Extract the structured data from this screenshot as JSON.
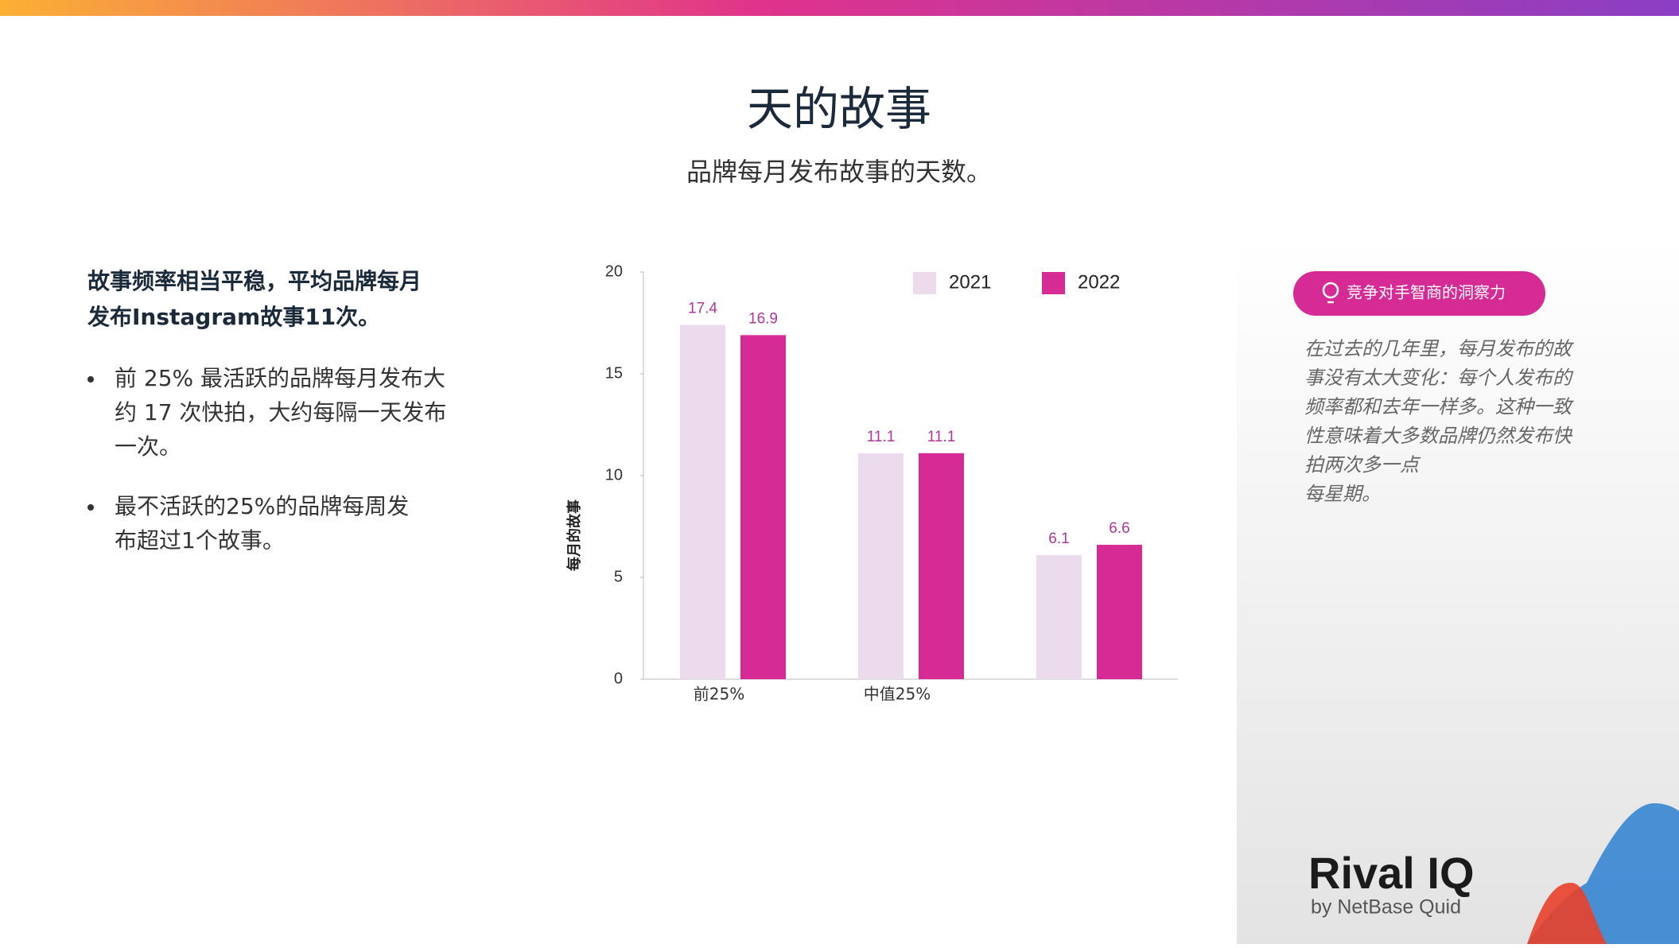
{
  "header": {
    "title": "天的故事",
    "subtitle": "品牌每月发布故事的天数。"
  },
  "summary": {
    "heading": [
      "故事频率相当平稳，平均品牌每月",
      "发布Instagram故事11次。"
    ],
    "bullets": [
      [
        "前 25% 最活跃的品牌每月发布大",
        "约 17 次快拍，大约每隔一天发布",
        "一次。"
      ],
      [
        "最不活跃的25%的品牌每周发",
        "布超过1个故事。"
      ]
    ]
  },
  "chart_data": {
    "type": "bar",
    "y_label": "每月的故事",
    "categories": [
      "前25%",
      "中值25%",
      null
    ],
    "series": [
      {
        "name": "2021",
        "color": "#ecdbec",
        "values": [
          17.4,
          11.1,
          6.1
        ]
      },
      {
        "name": "2022",
        "color": "#d62b94",
        "values": [
          16.9,
          11.1,
          6.6
        ]
      }
    ],
    "ylim": [
      0,
      20
    ],
    "yticks": [
      0,
      5,
      10,
      15,
      20
    ],
    "grid": false,
    "legend": "top-right"
  },
  "insight": {
    "badge": "竞争对手智商的洞察力",
    "lines": [
      "在过去的几年里，每月发布的故",
      "事没有太大变化：每个人发布的",
      "频率都和去年一样多。这种一致",
      "性意味着大多数品牌仍然发布快",
      "拍两次多一点",
      "每星期。"
    ]
  },
  "logo": {
    "name": "Rival IQ",
    "byline": "by NetBase Quid"
  }
}
